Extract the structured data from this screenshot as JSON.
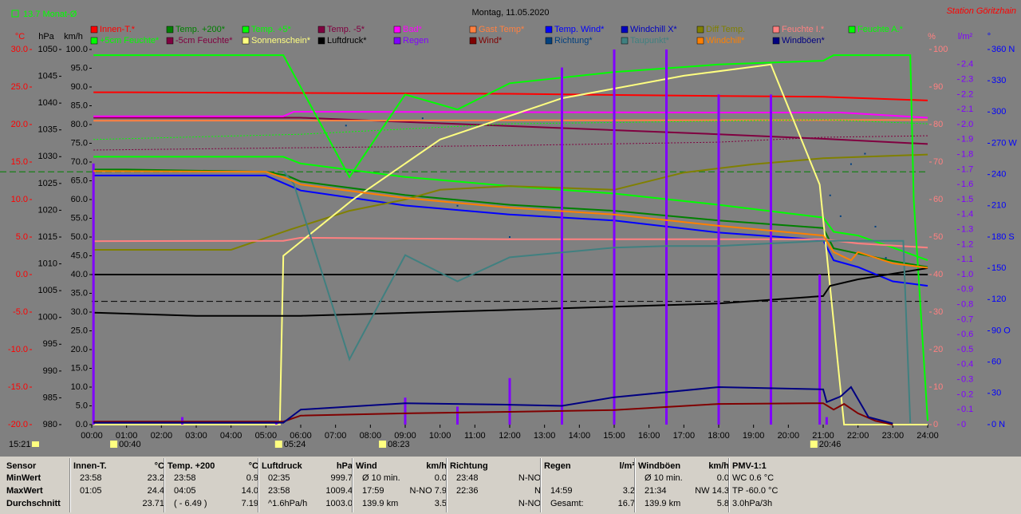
{
  "chart_data": {
    "type": "line",
    "title": "Montag, 11.05.2020",
    "station": "Station Göritzhain",
    "monthly_avg": {
      "value": 13.7,
      "label": "13.7 Monat-Ø"
    },
    "pressure_avg_line": 1003.0,
    "current_time": "15:21",
    "sun_markers": [
      "00:40",
      "05:24",
      "08:23",
      "20:46"
    ],
    "xlim": [
      0,
      24
    ],
    "xticks": [
      "00:00",
      "01:00",
      "02:00",
      "03:00",
      "04:00",
      "05:00",
      "06:00",
      "07:00",
      "08:00",
      "09:00",
      "10:00",
      "11:00",
      "12:00",
      "13:00",
      "14:00",
      "15:00",
      "16:00",
      "17:00",
      "18:00",
      "19:00",
      "20:00",
      "21:00",
      "22:00",
      "23:00",
      "24:00"
    ],
    "axes": {
      "temp": {
        "label": "°C",
        "color": "#ff0000",
        "ylim": [
          -20,
          30
        ],
        "yticks": [
          {
            "value": 30,
            "label": "30.0"
          },
          {
            "value": 25,
            "label": "25.0"
          },
          {
            "value": 20,
            "label": "20.0"
          },
          {
            "value": 15,
            "label": "15.0"
          },
          {
            "value": 10,
            "label": "10.0"
          },
          {
            "value": 5,
            "label": "5.0"
          },
          {
            "value": 0,
            "label": "0.0"
          },
          {
            "value": -5,
            "label": "-5.0"
          },
          {
            "value": -10,
            "label": "-10.0"
          },
          {
            "value": -15,
            "label": "-15.0"
          },
          {
            "value": -20,
            "label": "-20.0"
          }
        ]
      },
      "hpa": {
        "label": "hPa",
        "color": "#000000",
        "ylim": [
          980,
          1050
        ],
        "yticks": [
          1050,
          1045,
          1040,
          1035,
          1030,
          1025,
          1020,
          1015,
          1010,
          1005,
          1000,
          995,
          990,
          985,
          980
        ]
      },
      "kmh": {
        "label": "km/h",
        "color": "#000000",
        "ylim": [
          0,
          100
        ],
        "yticks": [
          {
            "value": 100,
            "label": "100.0"
          },
          {
            "value": 95,
            "label": "95.0"
          },
          {
            "value": 90,
            "label": "90.0"
          },
          {
            "value": 85,
            "label": "85.0"
          },
          {
            "value": 80,
            "label": "80.0"
          },
          {
            "value": 75,
            "label": "75.0"
          },
          {
            "value": 70,
            "label": "70.0"
          },
          {
            "value": 65,
            "label": "65.0"
          },
          {
            "value": 60,
            "label": "60.0"
          },
          {
            "value": 55,
            "label": "55.0"
          },
          {
            "value": 50,
            "label": "50.0"
          },
          {
            "value": 45,
            "label": "45.0"
          },
          {
            "value": 40,
            "label": "40.0"
          },
          {
            "value": 35,
            "label": "35.0"
          },
          {
            "value": 30,
            "label": "30.0"
          },
          {
            "value": 25,
            "label": "25.0"
          },
          {
            "value": 20,
            "label": "20.0"
          },
          {
            "value": 15,
            "label": "15.0"
          },
          {
            "value": 10,
            "label": "10.0"
          },
          {
            "value": 5,
            "label": "5.0"
          },
          {
            "value": 0,
            "label": "0.0"
          }
        ]
      },
      "pct": {
        "label": "%",
        "color": "#ff8080",
        "ylim": [
          0,
          100
        ],
        "yticks": [
          100,
          90,
          80,
          70,
          60,
          50,
          40,
          30,
          20,
          10,
          0
        ]
      },
      "rain": {
        "label": "l/m²",
        "color": "#8000ff",
        "ylim": [
          0,
          2.5
        ],
        "yticks": [
          2.4,
          2.3,
          2.2,
          2.1,
          {
            "value": 2,
            "label": "2.0"
          },
          1.9,
          1.8,
          1.7,
          1.6,
          1.5,
          1.4,
          1.3,
          1.2,
          1.1,
          {
            "value": 1,
            "label": "1.0"
          },
          0.9,
          0.8,
          0.7,
          0.6,
          0.5,
          0.4,
          0.3,
          0.2,
          0.1,
          0
        ]
      },
      "dir": {
        "label": "°",
        "color": "#0000ff",
        "ylim": [
          0,
          360
        ],
        "yticks": [
          {
            "value": 360,
            "label": "360 N"
          },
          330,
          300,
          {
            "value": 270,
            "label": "270 W"
          },
          240,
          210,
          {
            "value": 180,
            "label": "180 S"
          },
          150,
          120,
          {
            "value": 90,
            "label": "90 O"
          },
          60,
          30,
          {
            "value": 0,
            "label": "0 N"
          }
        ]
      }
    },
    "series": [
      {
        "name": "Innen-T.*",
        "color": "#ff0000",
        "axis": "temp",
        "x": [
          0.05,
          1,
          6,
          12,
          18,
          21,
          24
        ],
        "values": [
          24.3,
          24.3,
          24.2,
          24.1,
          23.8,
          23.7,
          23.2
        ]
      },
      {
        "name": "Temp. +200*",
        "color": "#008000",
        "axis": "temp",
        "x": [
          0.05,
          1,
          5,
          5.6,
          6,
          9,
          12,
          15,
          18,
          21,
          21.3,
          22,
          23,
          24
        ],
        "values": [
          14.0,
          14.0,
          13.7,
          13.2,
          12.4,
          10.6,
          9.3,
          8.5,
          7.2,
          6.2,
          3.5,
          2.8,
          1.8,
          1.0
        ]
      },
      {
        "name": "Temp. +5*",
        "color": "#00ff00",
        "axis": "temp",
        "x": [
          0.05,
          5.5,
          6,
          9,
          12,
          15,
          18,
          21,
          21.3,
          22,
          23,
          24
        ],
        "values": [
          15.7,
          15.7,
          14.8,
          13.0,
          11.8,
          10.8,
          9.3,
          7.6,
          5.7,
          5.2,
          3.6,
          1.9
        ]
      },
      {
        "name": "Temp. -5*",
        "color": "#800040",
        "axis": "temp",
        "x": [
          0.05,
          6,
          12,
          18,
          21,
          24
        ],
        "values": [
          20.9,
          20.9,
          19.8,
          18.7,
          18.1,
          17.4
        ]
      },
      {
        "name": "Bad*",
        "color": "#ff00ff",
        "axis": "temp",
        "x": [
          0.05,
          5.5,
          5.8,
          18,
          21.5,
          24
        ],
        "values": [
          21.1,
          21.1,
          21.7,
          21.6,
          21.6,
          20.9
        ]
      },
      {
        "name": "Gast Temp*",
        "color": "#ff8040",
        "axis": "temp",
        "x": [
          0.05,
          24
        ],
        "values": [
          20.5,
          20.6
        ]
      },
      {
        "name": "Temp. Wind*",
        "color": "#0000ff",
        "axis": "temp",
        "x": [
          0.05,
          5,
          5.6,
          6,
          9,
          12,
          15,
          18,
          21,
          21.3,
          22,
          23,
          24
        ],
        "values": [
          13.2,
          13.2,
          12.0,
          11.2,
          9.2,
          8.0,
          7.2,
          5.6,
          4.6,
          1.9,
          1.0,
          -0.9,
          -1.5
        ]
      },
      {
        "name": "Windchill X*",
        "color": "#0000c0"
      },
      {
        "name": "Diff Temp.",
        "color": "#808000",
        "axis": "temp",
        "x": [
          0.05,
          4,
          5.7,
          7.4,
          9,
          10,
          12,
          15,
          17,
          19,
          21,
          24
        ],
        "values": [
          3.3,
          3.3,
          6.0,
          8.5,
          10.0,
          11.3,
          11.8,
          11.3,
          13.6,
          14.7,
          15.5,
          16.0
        ]
      },
      {
        "name": "Feuchte I.*",
        "color": "#ff8080",
        "axis": "pct",
        "x": [
          0.05,
          5.5,
          6,
          12,
          18,
          21,
          22,
          24
        ],
        "values": [
          48.9,
          49,
          49.8,
          49.4,
          49.4,
          49.4,
          48.3,
          47.2
        ]
      },
      {
        "name": "Feuchte A.*",
        "color": "#00ff00",
        "axis": "pct",
        "x": [
          0.05,
          5.5,
          7.4,
          9,
          10.5,
          12,
          15,
          18,
          21,
          21.3,
          23.5,
          23.6,
          24
        ],
        "values": [
          98.5,
          98.5,
          66,
          88,
          84,
          91,
          94,
          96,
          97,
          98.5,
          98.5,
          60,
          1
        ]
      },
      {
        "name": "+5cm Feuchte*",
        "color": "#00ff00",
        "axis": "pct",
        "style": "dotted",
        "x": [
          0.05,
          6,
          12,
          18,
          21,
          24
        ],
        "values": [
          76,
          77.4,
          80.2,
          80.9,
          81.3,
          80.2
        ]
      },
      {
        "name": "-5cm Feuchte*",
        "color": "#800040",
        "axis": "pct",
        "style": "dotted",
        "x": [
          0.05,
          6,
          12,
          18,
          21,
          24
        ],
        "values": [
          73.2,
          73.8,
          74.4,
          75.3,
          76.6,
          77
        ]
      },
      {
        "name": "Sonnenschein*",
        "color": "#ffff80",
        "axis": "pct",
        "x": [
          0.05,
          5.4,
          5.5,
          7.5,
          10,
          13.5,
          17,
          19.5,
          20.9,
          21.6,
          24
        ],
        "values": [
          0,
          0,
          45,
          60,
          76,
          87,
          93,
          96,
          64,
          0,
          0
        ]
      },
      {
        "name": "Luftdruck*",
        "color": "#000000",
        "axis": "hpa",
        "x": [
          0.05,
          3,
          6,
          12,
          18,
          21,
          21.2,
          22,
          24
        ],
        "values": [
          1000.9,
          1000.3,
          1000.3,
          1001.4,
          1002.6,
          1004.0,
          1005.9,
          1007.1,
          1009.2
        ]
      },
      {
        "name": "Regen",
        "color": "#8000ff",
        "axis": "rain",
        "style": "bar",
        "x": [
          0.05,
          2.6,
          5.3,
          9,
          10.5,
          12,
          13.5,
          15,
          16.5,
          18,
          19.5,
          20.9,
          21.1
        ],
        "values": [
          1.74,
          0.05,
          0.02,
          0.18,
          0.12,
          0.31,
          2.38,
          2.5,
          2.5,
          2.2,
          2.2,
          1.0,
          0.05
        ]
      },
      {
        "name": "Wind*",
        "color": "#800000",
        "axis": "kmh",
        "x": [
          0.05,
          5.5,
          6,
          9,
          12,
          15,
          18,
          21,
          21.3,
          21.6,
          22,
          22.5,
          23
        ],
        "values": [
          0.8,
          0.8,
          2.4,
          3.0,
          3.4,
          3.9,
          5.5,
          5.7,
          4.0,
          5.5,
          3.0,
          1.0,
          0
        ]
      },
      {
        "name": "Richtung*",
        "color": "#004080",
        "axis": "dir",
        "style": "dots",
        "x": [
          7.3,
          9.5,
          10.5,
          12,
          21.2,
          21.5,
          21.8,
          22.2,
          22.5,
          22.8
        ],
        "values": [
          287,
          294,
          210,
          180,
          220,
          200,
          250,
          260,
          190,
          160
        ]
      },
      {
        "name": "Taupunkt*",
        "color": "#408080",
        "axis": "temp",
        "x": [
          5.5,
          5.8,
          7.4,
          9,
          10.5,
          12,
          15,
          16.5,
          18,
          21,
          23.3,
          23.5
        ],
        "values": [
          13.8,
          12.1,
          -11.3,
          2.6,
          -0.9,
          2.3,
          3.6,
          3.8,
          3.8,
          4.5,
          4.5,
          -19.8
        ]
      },
      {
        "name": "Windchill*",
        "color": "#ff8000",
        "axis": "temp",
        "x": [
          0.05,
          5,
          5.6,
          6,
          9,
          12,
          15,
          18,
          21,
          21.3,
          21.8,
          22,
          23,
          24
        ],
        "values": [
          13.8,
          13.7,
          12.8,
          12.0,
          10.2,
          8.9,
          8.0,
          6.5,
          5.2,
          3.0,
          1.9,
          3.0,
          1.5,
          0.9
        ]
      },
      {
        "name": "Windböen*",
        "color": "#000080",
        "axis": "kmh",
        "x": [
          0.05,
          5.5,
          6,
          9,
          12,
          13.5,
          15,
          18,
          21,
          21.1,
          21.5,
          21.8,
          22.3,
          23
        ],
        "values": [
          0.5,
          0.5,
          4.0,
          5.7,
          5.3,
          5.0,
          7.3,
          10.0,
          9.4,
          6.0,
          7.5,
          10.0,
          2,
          0.3
        ]
      }
    ]
  },
  "table": {
    "row_labels": [
      "Sensor",
      "MinWert",
      "MaxWert",
      "Durchschnitt"
    ],
    "groups": [
      {
        "title": "Innen-T.",
        "unit": "°C",
        "rows": [
          [
            "23:58",
            "23.2"
          ],
          [
            "01:05",
            "24.4"
          ],
          [
            "23.71"
          ]
        ]
      },
      {
        "title": "Temp. +200",
        "unit": "°C",
        "rows": [
          [
            "23:58",
            "0.9"
          ],
          [
            "04:05",
            "14.0"
          ],
          [
            "( - 6.49 )",
            "7.19"
          ]
        ]
      },
      {
        "title": "Luftdruck",
        "unit": "hPa",
        "rows": [
          [
            "02:35",
            "999.7"
          ],
          [
            "23:58",
            "1009.4"
          ],
          [
            "^1.6hPa/h",
            "1003.0"
          ]
        ]
      },
      {
        "title": "Wind",
        "unit": "km/h",
        "rows": [
          [
            "Ø 10 min.",
            "0.0"
          ],
          [
            "17:59",
            "N-NO 7.9"
          ],
          [
            "139.9 km",
            "3.5"
          ]
        ]
      },
      {
        "title": "Richtung",
        "rows": [
          [
            "23:48",
            "N-NO"
          ],
          [
            "22:36",
            "N"
          ],
          [
            "N-NO"
          ]
        ]
      },
      {
        "title": "Regen",
        "unit": "l/m²",
        "rows": [
          [],
          [
            "14:59",
            "3.2"
          ],
          [
            "Gesamt:",
            "16.7"
          ]
        ]
      },
      {
        "title": "Windböen",
        "unit": "km/h",
        "rows": [
          [
            "Ø 10 min.",
            "0.0"
          ],
          [
            "21:34",
            "NW 14.3"
          ],
          [
            "139.9 km",
            "5.8"
          ]
        ]
      },
      {
        "title": "PMV-1:1",
        "rows": [
          [
            "WC 0.6 °C"
          ],
          [
            "TP -60.0 °C"
          ],
          [
            "3.0hPa/3h"
          ]
        ]
      }
    ]
  }
}
